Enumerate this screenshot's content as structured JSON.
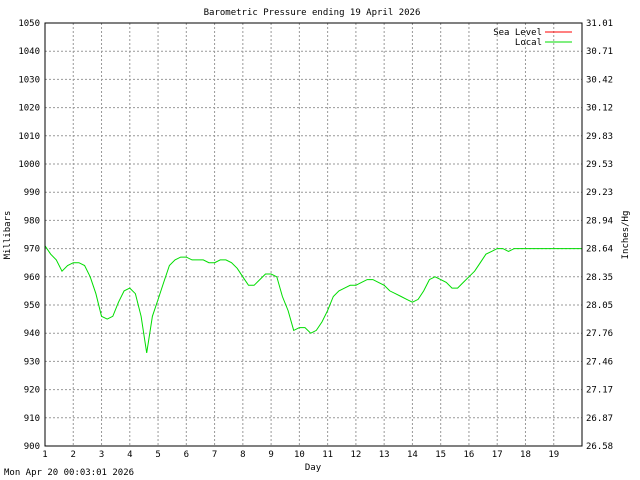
{
  "chart_data": {
    "type": "line",
    "title": "Barometric Pressure ending 19 April 2026",
    "xlabel": "Day",
    "ylabel": "Millibars",
    "y2label": "Inches/Hg",
    "xlim": [
      1,
      20
    ],
    "ylim": [
      900,
      1050
    ],
    "x_ticks": [
      "1",
      "2",
      "3",
      "4",
      "5",
      "6",
      "7",
      "8",
      "9",
      "10",
      "11",
      "12",
      "13",
      "14",
      "15",
      "16",
      "17",
      "18",
      "19"
    ],
    "y_ticks": [
      "900",
      "910",
      "920",
      "930",
      "940",
      "950",
      "960",
      "970",
      "980",
      "990",
      "1000",
      "1010",
      "1020",
      "1030",
      "1040",
      "1050"
    ],
    "y2_ticks": [
      "26.58",
      "26.87",
      "27.17",
      "27.46",
      "27.76",
      "28.05",
      "28.35",
      "28.64",
      "28.94",
      "29.23",
      "29.53",
      "29.83",
      "30.12",
      "30.42",
      "30.71",
      "31.01"
    ],
    "grid": true,
    "legend": "top-right",
    "series": [
      {
        "name": "Sea Level",
        "color": "#ff0000",
        "x": [],
        "y": []
      },
      {
        "name": "Local",
        "color": "#00dd00",
        "x": [
          1.0,
          1.2,
          1.4,
          1.6,
          1.8,
          2.0,
          2.2,
          2.4,
          2.6,
          2.8,
          3.0,
          3.2,
          3.4,
          3.6,
          3.8,
          4.0,
          4.2,
          4.4,
          4.6,
          4.8,
          5.0,
          5.2,
          5.4,
          5.6,
          5.8,
          6.0,
          6.2,
          6.4,
          6.6,
          6.8,
          7.0,
          7.2,
          7.4,
          7.6,
          7.8,
          8.0,
          8.2,
          8.4,
          8.6,
          8.8,
          9.0,
          9.2,
          9.4,
          9.6,
          9.8,
          10.0,
          10.2,
          10.4,
          10.6,
          10.8,
          11.0,
          11.2,
          11.4,
          11.6,
          11.8,
          12.0,
          12.2,
          12.4,
          12.6,
          12.8,
          13.0,
          13.2,
          13.4,
          13.6,
          13.8,
          14.0,
          14.2,
          14.4,
          14.6,
          14.8,
          15.0,
          15.2,
          15.4,
          15.6,
          15.8,
          16.0,
          16.2,
          16.4,
          16.6,
          16.8,
          17.0,
          17.2,
          17.4,
          17.6,
          17.8,
          18.0,
          18.2,
          18.4,
          18.6,
          18.8,
          19.0,
          19.2,
          19.4,
          19.6,
          19.8,
          20.0
        ],
        "y": [
          971,
          968,
          966,
          962,
          964,
          965,
          965,
          964,
          960,
          954,
          946,
          945,
          946,
          951,
          955,
          956,
          954,
          946,
          933,
          946,
          952,
          958,
          964,
          966,
          967,
          967,
          966,
          966,
          966,
          965,
          965,
          966,
          966,
          965,
          963,
          960,
          957,
          957,
          959,
          961,
          961,
          960,
          953,
          948,
          941,
          942,
          942,
          940,
          941,
          944,
          948,
          953,
          955,
          956,
          957,
          957,
          958,
          959,
          959,
          958,
          957,
          955,
          954,
          953,
          952,
          951,
          952,
          955,
          959,
          960,
          959,
          958,
          956,
          956,
          958,
          960,
          962,
          965,
          968,
          969,
          970,
          970,
          969,
          970,
          970,
          970,
          970,
          970,
          970,
          970,
          970,
          970,
          970,
          970,
          970,
          970
        ]
      }
    ]
  },
  "footer": {
    "timestamp": "Mon Apr 20 00:03:01 2026"
  }
}
